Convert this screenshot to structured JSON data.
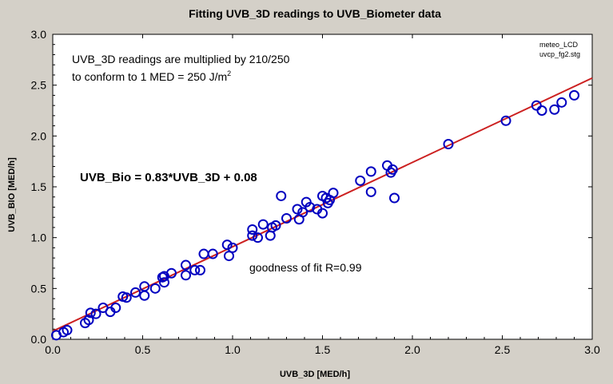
{
  "chart_data": {
    "type": "scatter",
    "title": "Fitting UVB_3D readings to UVB_Biometer data",
    "xlabel": "UVB_3D [MED/h]",
    "ylabel": "UVB_BIO [MED/h]",
    "xlim": [
      0.0,
      3.0
    ],
    "ylim": [
      0.0,
      3.0
    ],
    "x_ticks": [
      "0.0",
      "0.5",
      "1.0",
      "1.5",
      "2.0",
      "2.5",
      "3.0"
    ],
    "y_ticks": [
      "0.0",
      "0.5",
      "1.0",
      "1.5",
      "2.0",
      "2.5",
      "3.0"
    ],
    "grid": false,
    "colors": {
      "points": "#0000c0",
      "fit_line": "#cc2020",
      "background": "#d4d0c8",
      "plot_area": "#ffffff"
    },
    "annotations": {
      "note_line1": "UVB_3D readings are multiplied by 210/250",
      "note_line2_prefix": "to conform to  1 MED = 250 J/m",
      "note_line2_sup": "2",
      "equation": "UVB_Bio = 0.83*UVB_3D + 0.08",
      "goodness": "goodness of fit R=0.99",
      "file_line1": "meteo_LCD",
      "file_line2": "uvcp_fg2.stg"
    },
    "fit": {
      "slope": 0.83,
      "intercept": 0.08
    },
    "points": [
      [
        0.02,
        0.04
      ],
      [
        0.06,
        0.07
      ],
      [
        0.08,
        0.09
      ],
      [
        0.18,
        0.16
      ],
      [
        0.2,
        0.19
      ],
      [
        0.21,
        0.26
      ],
      [
        0.24,
        0.25
      ],
      [
        0.28,
        0.31
      ],
      [
        0.32,
        0.27
      ],
      [
        0.35,
        0.31
      ],
      [
        0.39,
        0.42
      ],
      [
        0.41,
        0.41
      ],
      [
        0.46,
        0.46
      ],
      [
        0.51,
        0.52
      ],
      [
        0.51,
        0.43
      ],
      [
        0.57,
        0.5
      ],
      [
        0.61,
        0.61
      ],
      [
        0.62,
        0.56
      ],
      [
        0.62,
        0.62
      ],
      [
        0.66,
        0.65
      ],
      [
        0.74,
        0.73
      ],
      [
        0.74,
        0.63
      ],
      [
        0.79,
        0.68
      ],
      [
        0.82,
        0.68
      ],
      [
        0.84,
        0.84
      ],
      [
        0.89,
        0.84
      ],
      [
        0.97,
        0.93
      ],
      [
        0.98,
        0.82
      ],
      [
        1.0,
        0.9
      ],
      [
        1.11,
        1.02
      ],
      [
        1.11,
        1.08
      ],
      [
        1.14,
        1.0
      ],
      [
        1.17,
        1.13
      ],
      [
        1.21,
        1.02
      ],
      [
        1.22,
        1.1
      ],
      [
        1.24,
        1.12
      ],
      [
        1.27,
        1.41
      ],
      [
        1.3,
        1.19
      ],
      [
        1.36,
        1.28
      ],
      [
        1.37,
        1.18
      ],
      [
        1.39,
        1.25
      ],
      [
        1.41,
        1.35
      ],
      [
        1.43,
        1.3
      ],
      [
        1.47,
        1.28
      ],
      [
        1.5,
        1.41
      ],
      [
        1.5,
        1.24
      ],
      [
        1.52,
        1.39
      ],
      [
        1.53,
        1.34
      ],
      [
        1.54,
        1.37
      ],
      [
        1.56,
        1.44
      ],
      [
        1.71,
        1.56
      ],
      [
        1.77,
        1.65
      ],
      [
        1.77,
        1.45
      ],
      [
        1.86,
        1.71
      ],
      [
        1.88,
        1.64
      ],
      [
        1.89,
        1.67
      ],
      [
        1.9,
        1.39
      ],
      [
        2.2,
        1.92
      ],
      [
        2.52,
        2.15
      ],
      [
        2.69,
        2.3
      ],
      [
        2.72,
        2.25
      ],
      [
        2.79,
        2.26
      ],
      [
        2.83,
        2.33
      ],
      [
        2.9,
        2.4
      ]
    ]
  }
}
